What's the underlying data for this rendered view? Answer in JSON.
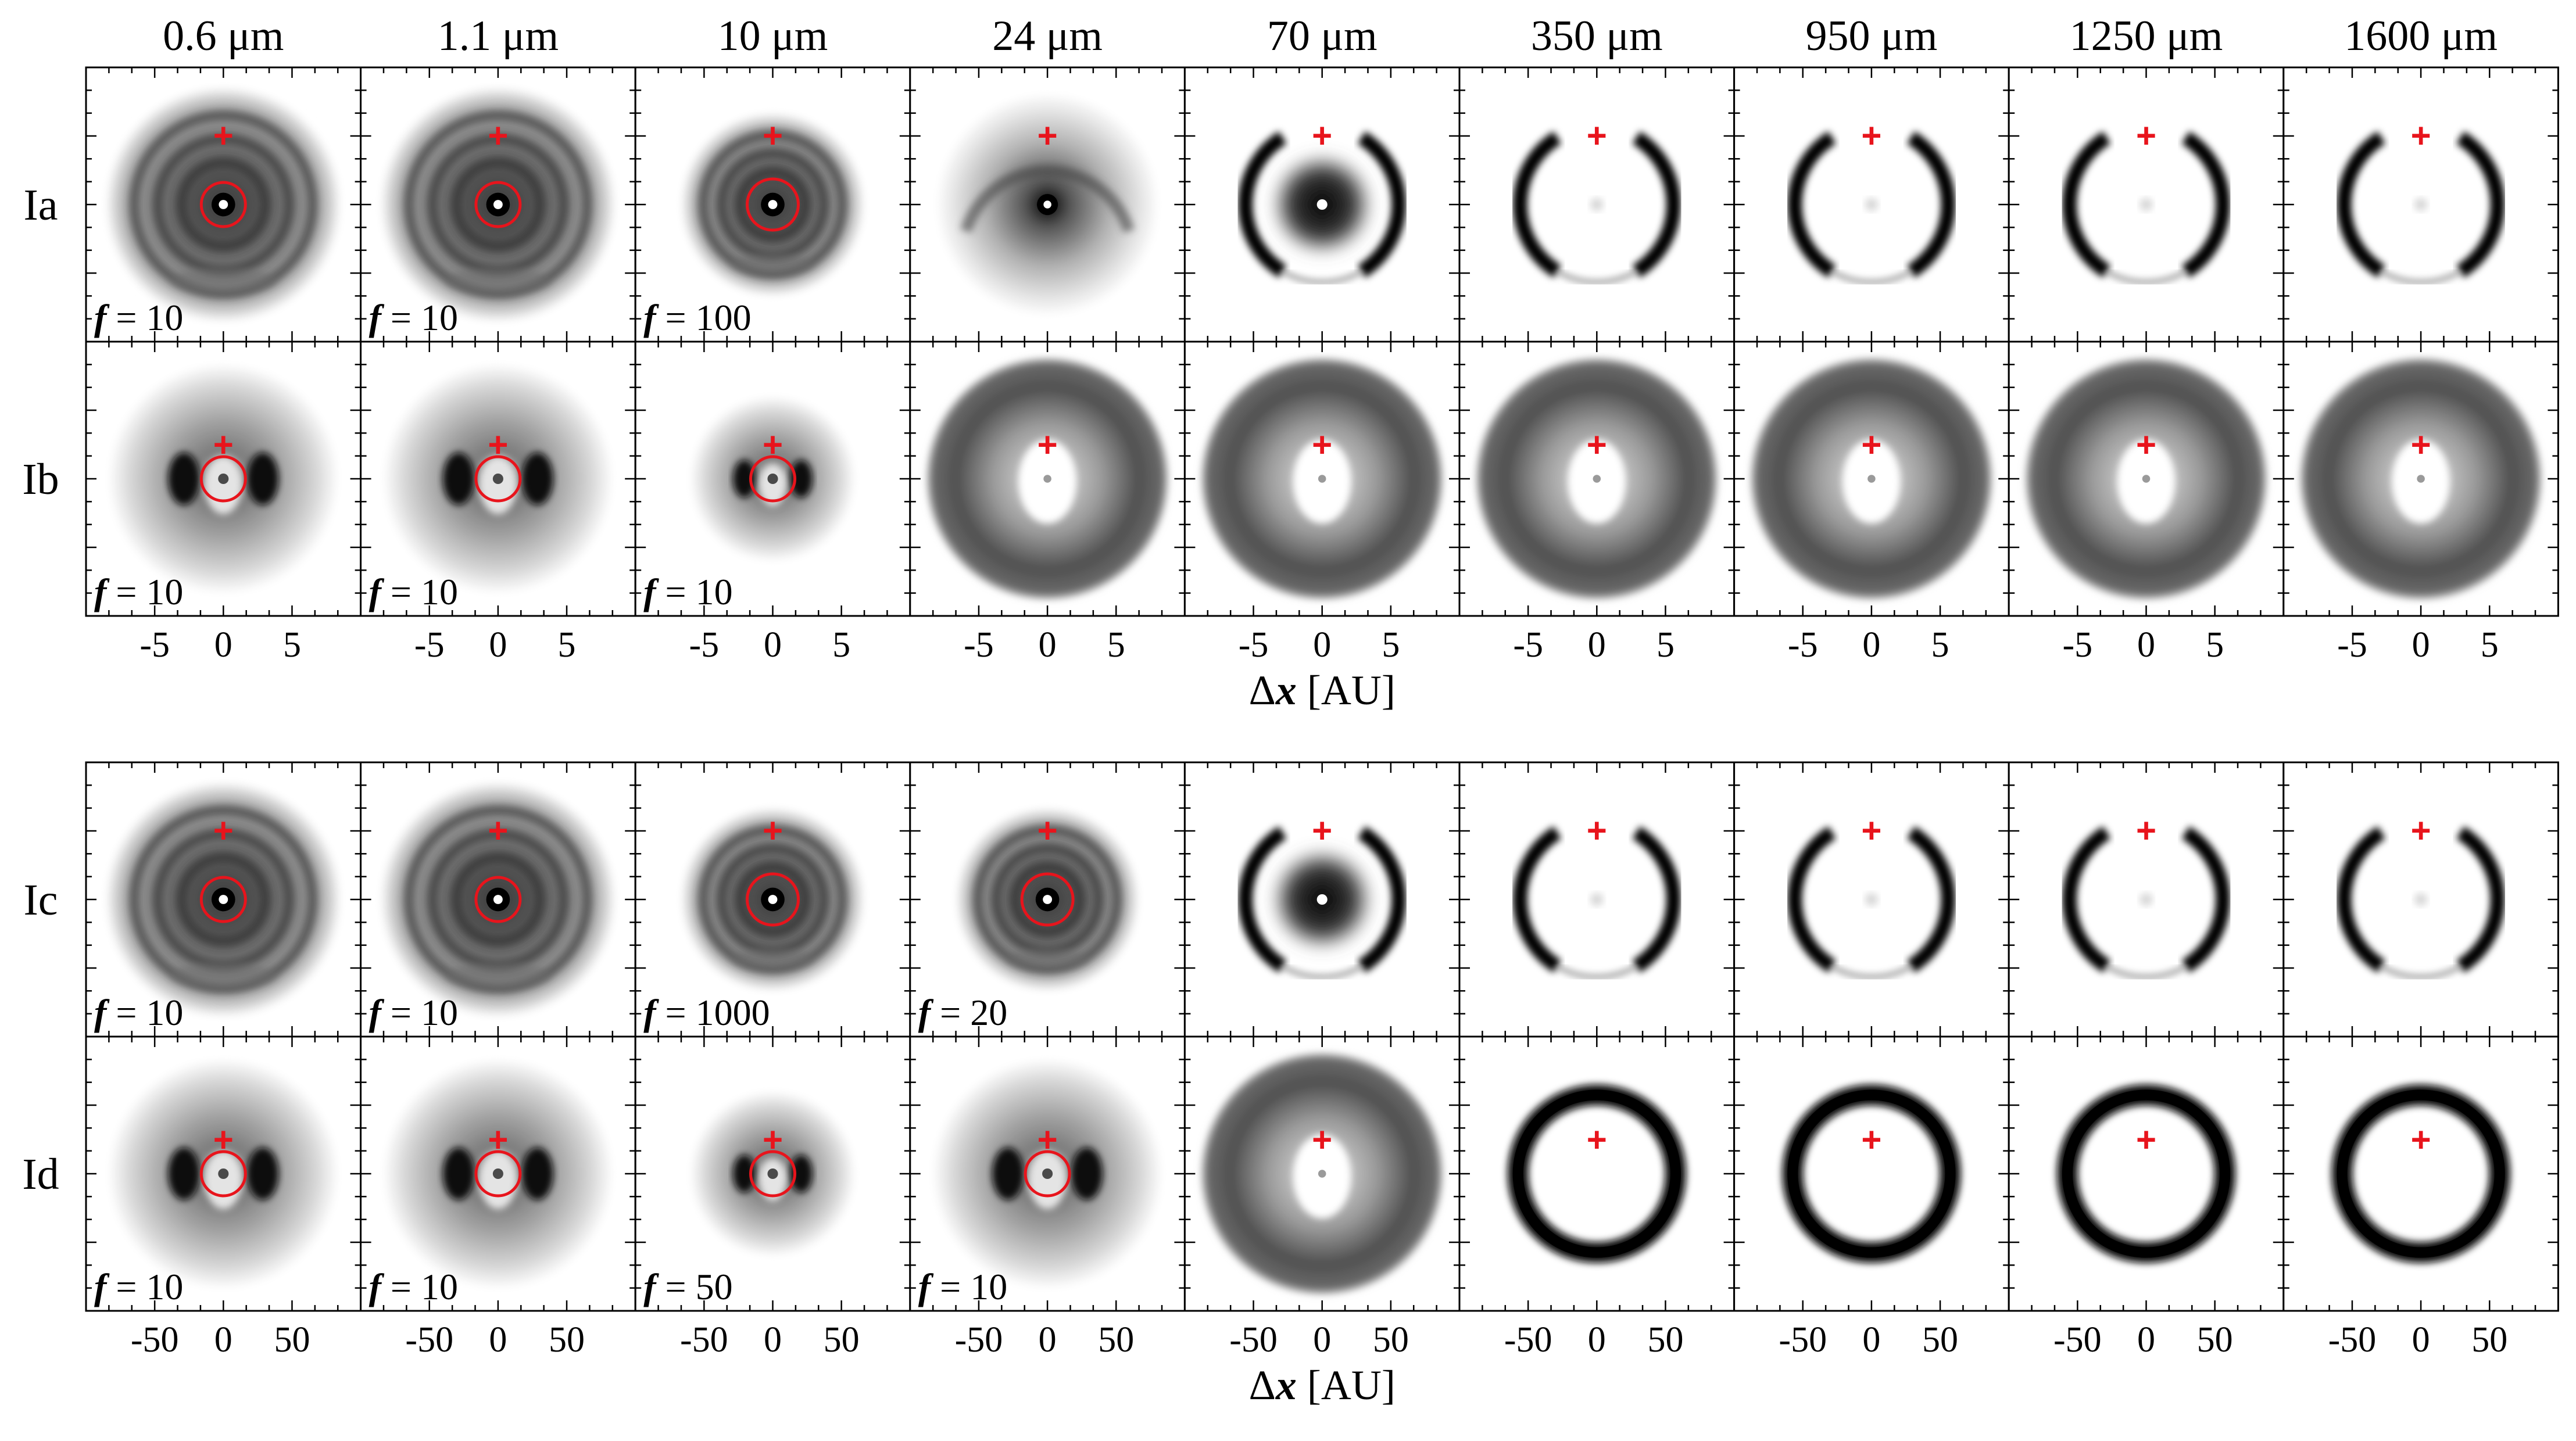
{
  "figure": {
    "wavelengths": [
      "0.6 μm",
      "1.1 μm",
      "10 μm",
      "24 μm",
      "70 μm",
      "350 μm",
      "950 μm",
      "1250 μm",
      "1600 μm"
    ],
    "colors": {
      "marker": "#e8141c",
      "ink": "#000000",
      "background": "#ffffff"
    },
    "marker_symbol": "+",
    "factor_symbol": "f",
    "blocks": [
      {
        "x_ticks": [
          "-5",
          "0",
          "5"
        ],
        "x_label_delta": "Δ",
        "x_label_var": "x",
        "x_label_unit": "[AU]",
        "rows": [
          {
            "label": "Ia",
            "panels": [
              {
                "style": "halo",
                "ring": true,
                "factor": "= 10"
              },
              {
                "style": "halo",
                "ring": true,
                "factor": "= 10"
              },
              {
                "style": "halo-big",
                "ring": true,
                "factor": "= 100"
              },
              {
                "style": "fade",
                "ring": false,
                "factor": ""
              },
              {
                "style": "arcs-core",
                "ring": false,
                "factor": ""
              },
              {
                "style": "arcs",
                "ring": false,
                "factor": ""
              },
              {
                "style": "arcs",
                "ring": false,
                "factor": ""
              },
              {
                "style": "arcs",
                "ring": false,
                "factor": ""
              },
              {
                "style": "arcs",
                "ring": false,
                "factor": ""
              }
            ]
          },
          {
            "label": "Ib",
            "panels": [
              {
                "style": "blob",
                "ring": true,
                "factor": "= 10"
              },
              {
                "style": "blob",
                "ring": true,
                "factor": "= 10"
              },
              {
                "style": "blob-small",
                "ring": true,
                "factor": "= 10"
              },
              {
                "style": "dark-disk",
                "ring": false,
                "factor": ""
              },
              {
                "style": "dark-disk",
                "ring": false,
                "factor": ""
              },
              {
                "style": "dark-disk",
                "ring": false,
                "factor": ""
              },
              {
                "style": "dark-disk",
                "ring": false,
                "factor": ""
              },
              {
                "style": "dark-disk",
                "ring": false,
                "factor": ""
              },
              {
                "style": "dark-disk",
                "ring": false,
                "factor": ""
              }
            ]
          }
        ]
      },
      {
        "x_ticks": [
          "-50",
          "0",
          "50"
        ],
        "x_label_delta": "Δ",
        "x_label_var": "x",
        "x_label_unit": "[AU]",
        "rows": [
          {
            "label": "Ic",
            "panels": [
              {
                "style": "halo",
                "ring": true,
                "factor": "= 10"
              },
              {
                "style": "halo",
                "ring": true,
                "factor": "= 10"
              },
              {
                "style": "halo-big",
                "ring": true,
                "factor": "= 1000"
              },
              {
                "style": "halo-big",
                "ring": true,
                "factor": "= 20"
              },
              {
                "style": "arcs-core",
                "ring": false,
                "factor": ""
              },
              {
                "style": "arcs",
                "ring": false,
                "factor": ""
              },
              {
                "style": "arcs",
                "ring": false,
                "factor": ""
              },
              {
                "style": "arcs",
                "ring": false,
                "factor": ""
              },
              {
                "style": "arcs",
                "ring": false,
                "factor": ""
              }
            ]
          },
          {
            "label": "Id",
            "panels": [
              {
                "style": "blob",
                "ring": true,
                "factor": "= 10"
              },
              {
                "style": "blob",
                "ring": true,
                "factor": "= 10"
              },
              {
                "style": "blob-small",
                "ring": true,
                "factor": "= 50"
              },
              {
                "style": "blob",
                "ring": true,
                "factor": "= 10"
              },
              {
                "style": "dark-disk",
                "ring": false,
                "factor": ""
              },
              {
                "style": "ring",
                "ring": false,
                "factor": ""
              },
              {
                "style": "ring",
                "ring": false,
                "factor": ""
              },
              {
                "style": "ring",
                "ring": false,
                "factor": ""
              },
              {
                "style": "ring",
                "ring": false,
                "factor": ""
              }
            ]
          }
        ]
      }
    ]
  }
}
